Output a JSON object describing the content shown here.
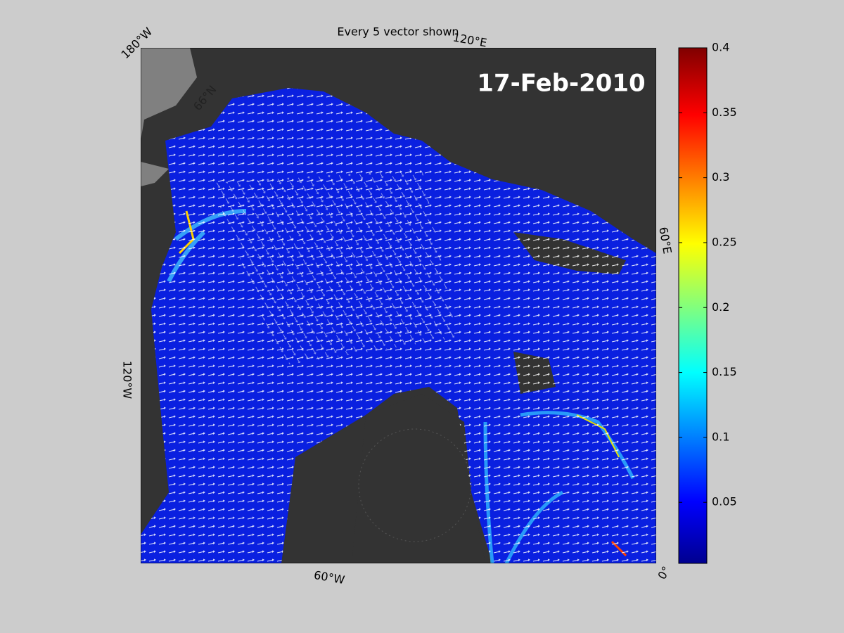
{
  "map": {
    "title": "Every 5 vector shown",
    "date": "17-Feb-2010",
    "graticule_labels": [
      "180°W",
      "120°E",
      "60°E",
      "120°W",
      "60°W",
      "0°",
      "66°N"
    ],
    "colorbar": {
      "ylim": [
        0.003,
        0.4
      ],
      "yticks": [
        0.05,
        0.1,
        0.15,
        0.2,
        0.25,
        0.3,
        0.35,
        0.4
      ]
    }
  }
}
